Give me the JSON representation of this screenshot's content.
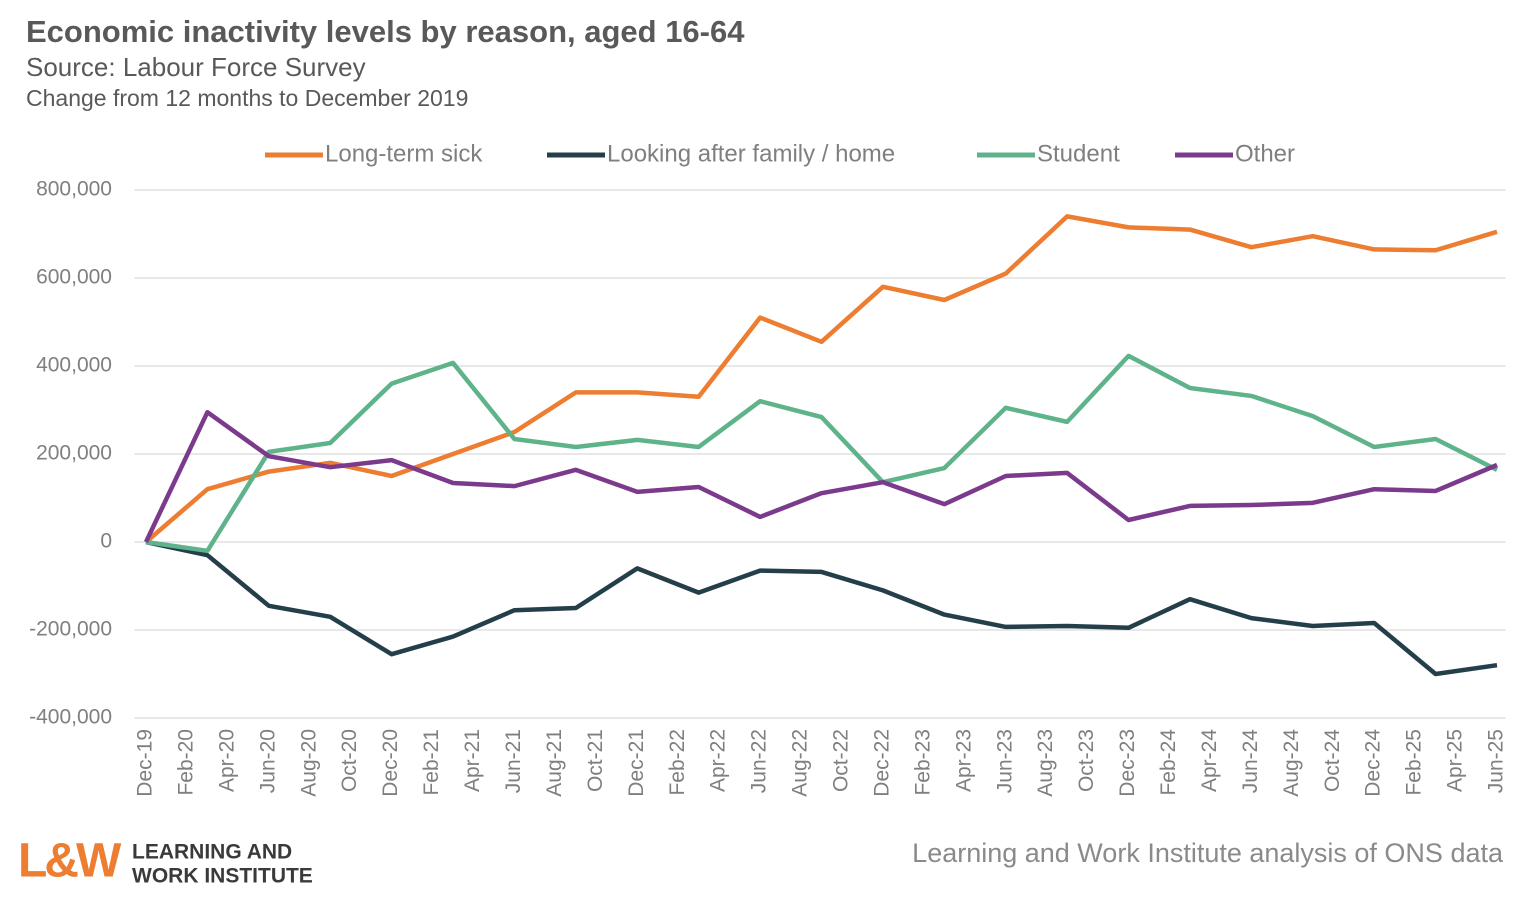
{
  "chart_data": {
    "type": "line",
    "title": "Economic inactivity levels by reason, aged 16-64",
    "subtitle": "Source: Labour Force Survey",
    "note": "Change from 12 months to December 2019",
    "x": [
      "Dec-19",
      "Mar-20",
      "Jun-20",
      "Sep-20",
      "Dec-20",
      "Mar-21",
      "Jun-21",
      "Sep-21",
      "Dec-21",
      "Mar-22",
      "Jun-22",
      "Sep-22",
      "Dec-22",
      "Mar-23",
      "Jun-23",
      "Sep-23",
      "Dec-23",
      "Mar-24",
      "Jun-24",
      "Sep-24",
      "Dec-24",
      "Mar-25",
      "Jun-25"
    ],
    "xticks": [
      "Dec-19",
      "Feb-20",
      "Apr-20",
      "Jun-20",
      "Aug-20",
      "Oct-20",
      "Dec-20",
      "Feb-21",
      "Apr-21",
      "Jun-21",
      "Aug-21",
      "Oct-21",
      "Dec-21",
      "Feb-22",
      "Apr-22",
      "Jun-22",
      "Aug-22",
      "Oct-22",
      "Dec-22",
      "Feb-23",
      "Apr-23",
      "Jun-23",
      "Aug-23",
      "Oct-23",
      "Dec-23",
      "Feb-24",
      "Apr-24",
      "Jun-24",
      "Aug-24",
      "Oct-24",
      "Dec-24",
      "Feb-25",
      "Apr-25",
      "Jun-25"
    ],
    "series": [
      {
        "name": "Long-term sick",
        "color": "#ed7d31",
        "values": [
          0,
          120000,
          160000,
          180000,
          150000,
          200000,
          250000,
          340000,
          340000,
          330000,
          510000,
          455000,
          580000,
          550000,
          610000,
          740000,
          715000,
          710000,
          670000,
          695000,
          665000,
          663000,
          705000
        ]
      },
      {
        "name": "Looking after family / home",
        "color": "#243f4a",
        "values": [
          0,
          -30000,
          -145000,
          -170000,
          -255000,
          -215000,
          -155000,
          -150000,
          -60000,
          -115000,
          -65000,
          -68000,
          -110000,
          -165000,
          -193000,
          -191000,
          -195000,
          -130000,
          -173000,
          -191000,
          -184000,
          -300000,
          -280000
        ]
      },
      {
        "name": "Student",
        "color": "#5fb38a",
        "values": [
          0,
          -20000,
          205000,
          225000,
          360000,
          407000,
          234000,
          216000,
          232000,
          216000,
          320000,
          284000,
          136000,
          168000,
          305000,
          273000,
          423000,
          350000,
          332000,
          286000,
          216000,
          234000,
          164000
        ]
      },
      {
        "name": "Other",
        "color": "#7b3a8c",
        "values": [
          0,
          295000,
          195000,
          170000,
          186000,
          134000,
          127000,
          164000,
          114000,
          125000,
          57000,
          111000,
          136000,
          86000,
          150000,
          157000,
          50000,
          82000,
          84000,
          89000,
          120000,
          116000,
          175000
        ]
      }
    ],
    "ylim": [
      -400000,
      800000
    ],
    "yticks": [
      {
        "value": -400000,
        "label": "-400,000"
      },
      {
        "value": -200000,
        "label": "-200,000"
      },
      0,
      {
        "value": 200000,
        "label": "200,000"
      },
      {
        "value": 400000,
        "label": "400,000"
      },
      {
        "value": 600000,
        "label": "600,000"
      },
      {
        "value": 800000,
        "label": "800,000"
      }
    ],
    "grid": true,
    "legend": "top"
  },
  "footer": {
    "logo_mark": "L&W",
    "logo_line1": "LEARNING AND",
    "logo_line2": "WORK INSTITUTE",
    "credit": "Learning and Work Institute analysis of ONS data"
  }
}
